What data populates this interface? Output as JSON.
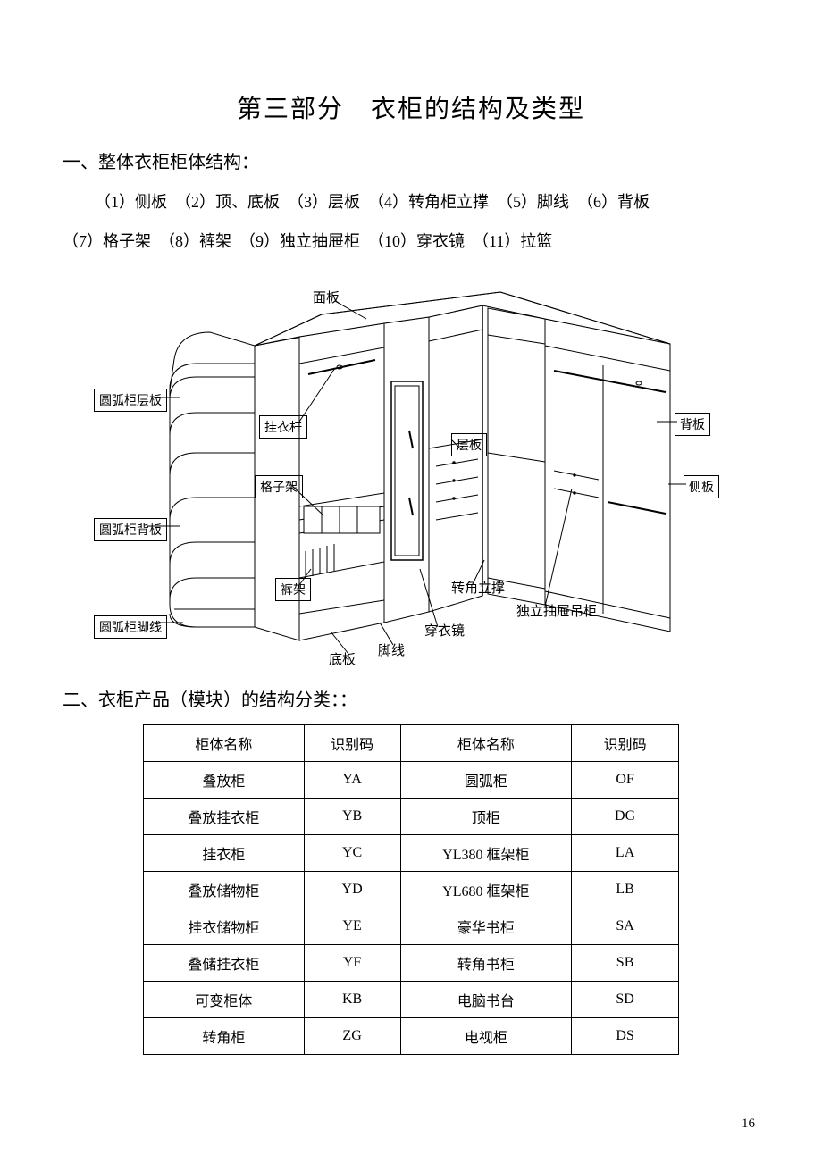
{
  "title": "第三部分　衣柜的结构及类型",
  "section1": {
    "heading": "一、整体衣柜柜体结构：",
    "line1": "（1）侧板　（2）顶、底板　（3）层板　（4）转角柜立撑　（5）脚线　（6）背板",
    "line2": "（7）格子架　（8）裤架　（9）独立抽屉柜　（10）穿衣镜　（11）拉篮"
  },
  "diagram": {
    "labels": {
      "mianban": "面板",
      "yuanhu_cengban": "圆弧柜层板",
      "guayigan": "挂衣杆",
      "gezijia": "格子架",
      "yuanhu_beiban": "圆弧柜背板",
      "kujia": "裤架",
      "yuanhu_jiaoxian": "圆弧柜脚线",
      "diban": "底板",
      "jiaoxian": "脚线",
      "chuanyijing": "穿衣镜",
      "cengban": "层板",
      "beiban": "背板",
      "ceban": "侧板",
      "zhuanjiao_licheng": "转角立撑",
      "duli_chouti": "独立抽屉吊柜"
    },
    "stroke": "#000000",
    "fill": "#ffffff"
  },
  "section2": {
    "heading": "二、衣柜产品（模块）的结构分类：："
  },
  "table": {
    "headers": [
      "柜体名称",
      "识别码",
      "柜体名称",
      "识别码"
    ],
    "rows": [
      [
        "叠放柜",
        "YA",
        "圆弧柜",
        "OF"
      ],
      [
        "叠放挂衣柜",
        "YB",
        "顶柜",
        "DG"
      ],
      [
        "挂衣柜",
        "YC",
        "YL380 框架柜",
        "LA"
      ],
      [
        "叠放储物柜",
        "YD",
        "YL680 框架柜",
        "LB"
      ],
      [
        "挂衣储物柜",
        "YE",
        "豪华书柜",
        "SA"
      ],
      [
        "叠储挂衣柜",
        "YF",
        "转角书柜",
        "SB"
      ],
      [
        "可变柜体",
        "KB",
        "电脑书台",
        "SD"
      ],
      [
        "转角柜",
        "ZG",
        "电视柜",
        "DS"
      ]
    ]
  },
  "pageNumber": "16"
}
